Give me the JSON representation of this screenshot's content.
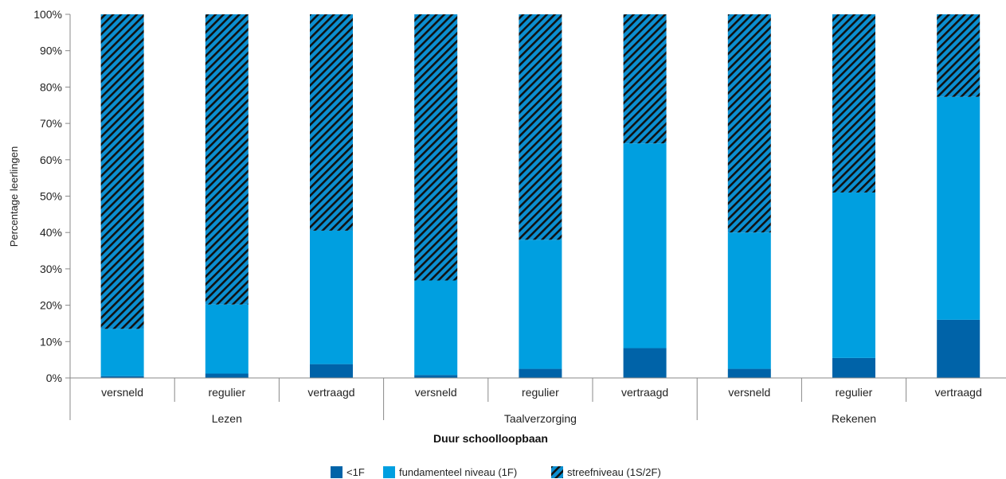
{
  "chart_data": {
    "type": "bar",
    "stacked": true,
    "ylabel": "Percentage leerlingen",
    "xlabel": "Duur schoolloopbaan",
    "ylim": [
      0,
      100
    ],
    "yticks": [
      0,
      10,
      20,
      30,
      40,
      50,
      60,
      70,
      80,
      90,
      100
    ],
    "ytick_labels": [
      "0%",
      "10%",
      "20%",
      "30%",
      "40%",
      "50%",
      "60%",
      "70%",
      "80%",
      "90%",
      "100%"
    ],
    "groups": [
      {
        "label": "Lezen",
        "categories": [
          "versneld",
          "regulier",
          "vertraagd"
        ]
      },
      {
        "label": "Taalverzorging",
        "categories": [
          "versneld",
          "regulier",
          "vertraagd"
        ]
      },
      {
        "label": "Rekenen",
        "categories": [
          "versneld",
          "regulier",
          "vertraagd"
        ]
      }
    ],
    "categories": [
      "versneld",
      "regulier",
      "vertraagd",
      "versneld",
      "regulier",
      "vertraagd",
      "versneld",
      "regulier",
      "vertraagd"
    ],
    "series": [
      {
        "name": "<1F",
        "color": "#0063a8",
        "pattern": "solid",
        "values": [
          0.5,
          1.2,
          3.8,
          0.8,
          2.5,
          8.2,
          2.5,
          5.5,
          16.0
        ]
      },
      {
        "name": "fundamenteel niveau (1F)",
        "color": "#009fe0",
        "pattern": "solid",
        "values": [
          13.0,
          19.0,
          36.7,
          26.0,
          35.5,
          56.3,
          37.5,
          45.5,
          61.3
        ]
      },
      {
        "name": "streefniveau (1S/2F)",
        "color": "#0b8fd1",
        "pattern": "hatch",
        "values": [
          86.5,
          79.8,
          59.5,
          73.2,
          62.0,
          35.5,
          60.0,
          49.0,
          22.7
        ]
      }
    ],
    "legend": {
      "position": "bottom"
    },
    "grid": false
  }
}
